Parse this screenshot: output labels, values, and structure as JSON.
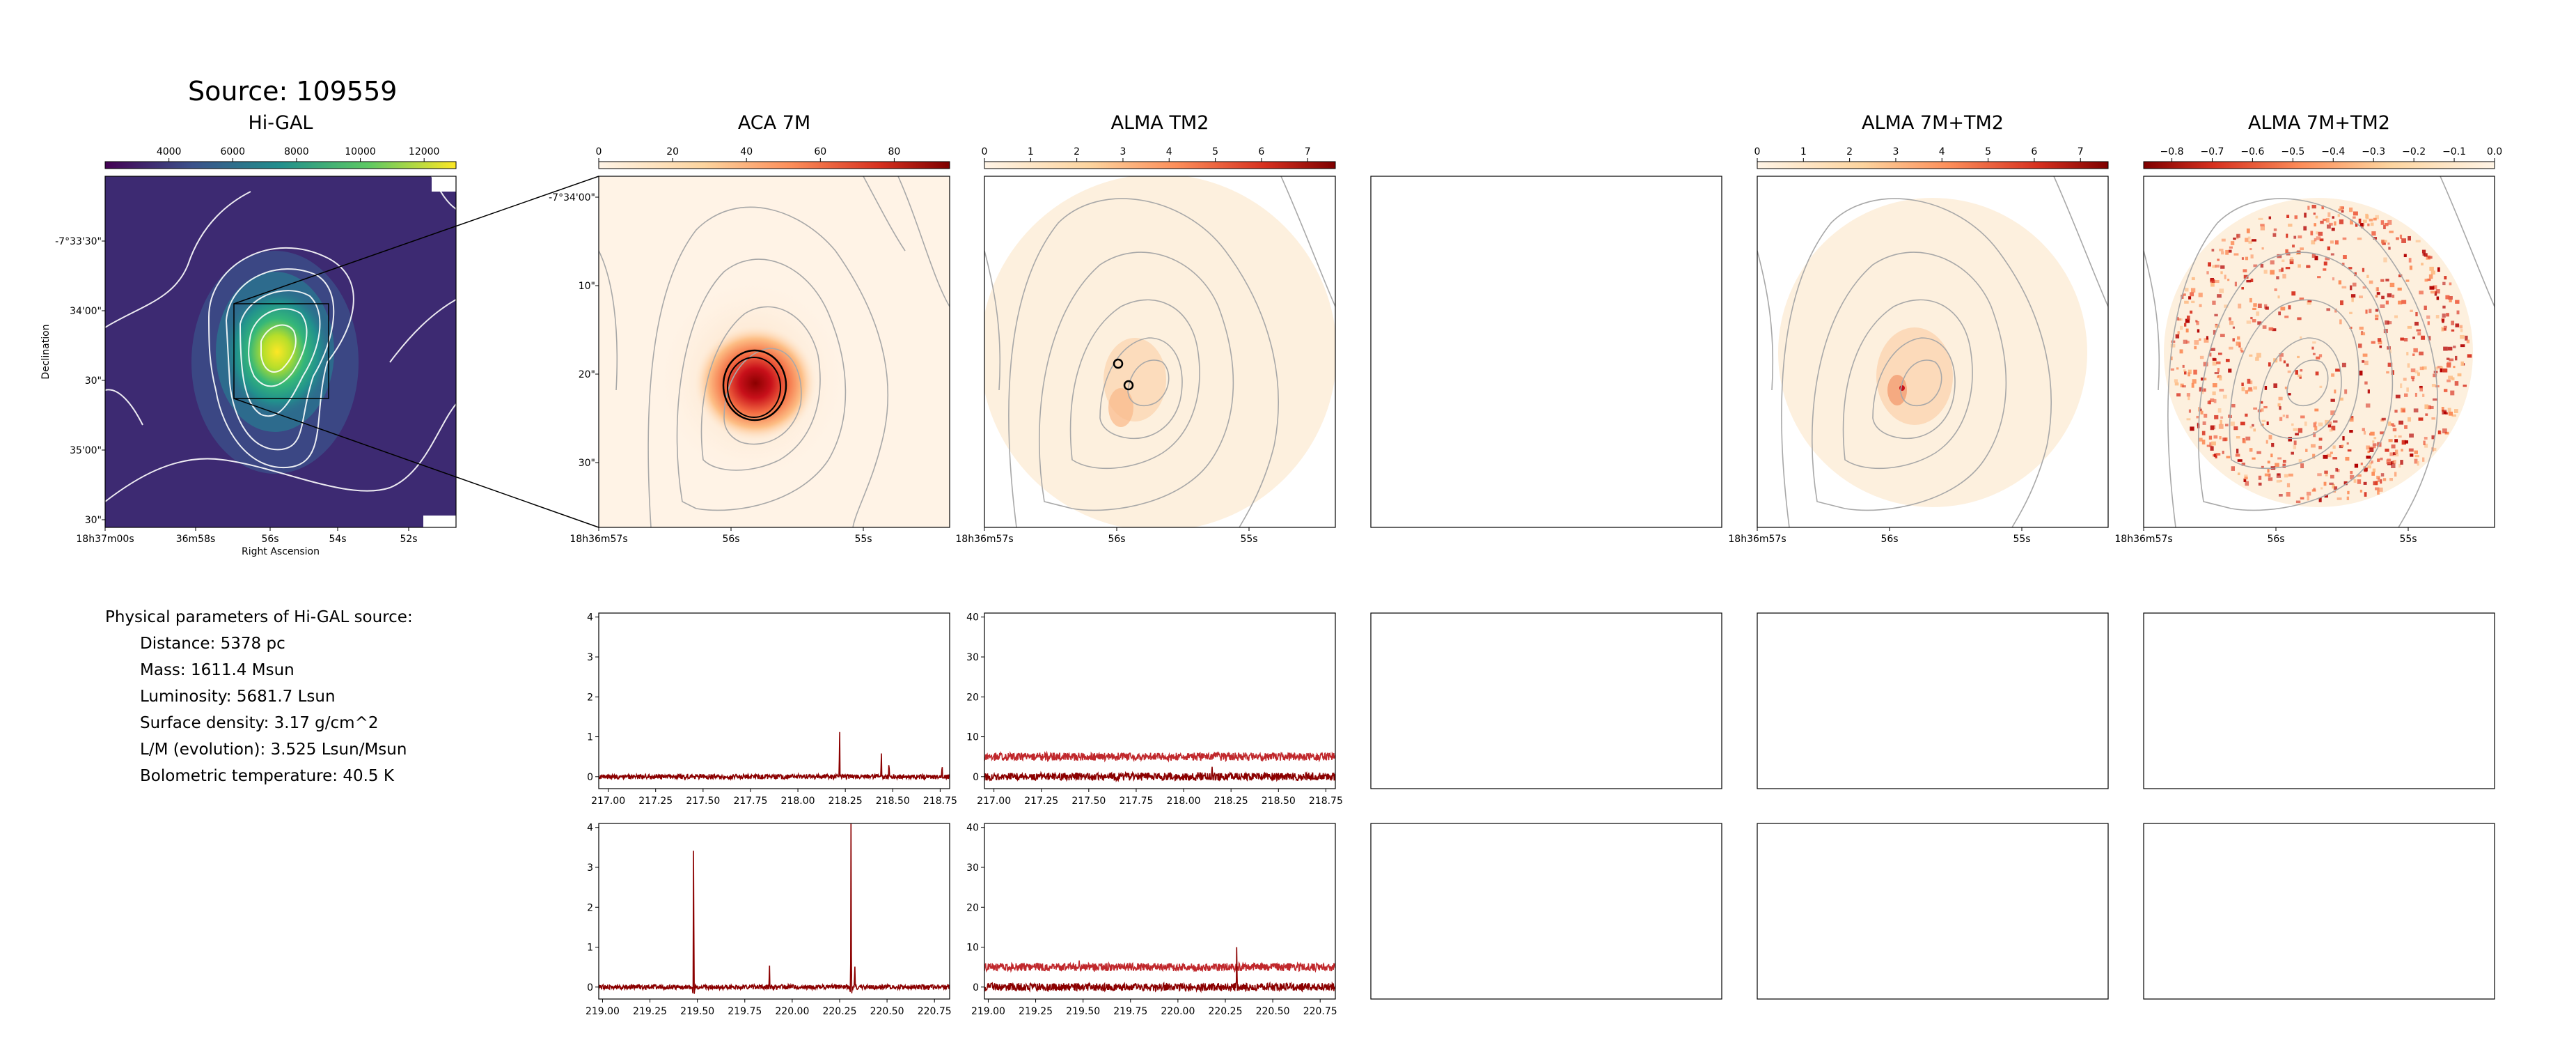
{
  "source_title": "Source: 109559",
  "params": {
    "heading": "Physical parameters of Hi-GAL source:",
    "lines": [
      "Distance: 5378 pc",
      "Mass: 1611.4 Msun",
      "Luminosity: 5681.7 Lsun",
      "Surface density: 3.17 g/cm^2",
      "L/M (evolution): 3.525 Lsun/Msun",
      "Bolometric temperature: 40.5 K"
    ]
  },
  "colors": {
    "viridis": [
      "#440154",
      "#3b528b",
      "#21908d",
      "#5dc963",
      "#fde725"
    ],
    "orange_red": [
      "#fff4e6",
      "#fdd49e",
      "#fc8d59",
      "#d7301f",
      "#7f0000"
    ],
    "spectrum_line": "#8b0000",
    "spectrum_line_2": "#c0282c",
    "contour_white": "#ffffff",
    "contour_gray": "#a8a8a8"
  },
  "chart_data": [
    {
      "id": "higal",
      "type": "heatmap",
      "title": "Hi-GAL",
      "colormap": "viridis",
      "colorbar_ticks": [
        "4000",
        "6000",
        "8000",
        "10000",
        "12000"
      ],
      "colorbar_range": [
        2000,
        13000
      ],
      "xlabel": "Right Ascension",
      "ylabel": "Declination",
      "x_ticks": [
        "18h37m00s",
        "36m58s",
        "56s",
        "54s",
        "52s"
      ],
      "y_ticks": [
        "-7°33'30\"",
        "34'00\"",
        "30\"",
        "35'00\"",
        "30\""
      ],
      "zoom_box": true
    },
    {
      "id": "aca7m",
      "type": "heatmap",
      "title": "ACA 7M",
      "colormap": "OrRd",
      "colorbar_ticks": [
        "0",
        "20",
        "40",
        "60",
        "80"
      ],
      "colorbar_range": [
        0,
        95
      ],
      "x_ticks": [
        "18h36m57s",
        "56s",
        "55s"
      ],
      "y_ticks": [
        "-7°34'00\"",
        "10\"",
        "20\"",
        "30\""
      ]
    },
    {
      "id": "tm2",
      "type": "heatmap",
      "title": "ALMA TM2",
      "colormap": "OrRd",
      "colorbar_ticks": [
        "0",
        "1",
        "2",
        "3",
        "4",
        "5",
        "6",
        "7"
      ],
      "colorbar_range": [
        0,
        7.6
      ],
      "x_ticks": [
        "18h36m57s",
        "56s",
        "55s"
      ]
    },
    {
      "id": "combined",
      "type": "heatmap",
      "title": "ALMA 7M+TM2",
      "colormap": "OrRd",
      "colorbar_ticks": [
        "0",
        "1",
        "2",
        "3",
        "4",
        "5",
        "6",
        "7"
      ],
      "colorbar_range": [
        0,
        7.6
      ],
      "x_ticks": [
        "18h36m57s",
        "56s",
        "55s"
      ]
    },
    {
      "id": "residual",
      "type": "heatmap",
      "title": "ALMA 7M+TM2",
      "colormap": "OrRd_r",
      "colorbar_ticks": [
        "−0.8",
        "−0.7",
        "−0.6",
        "−0.5",
        "−0.4",
        "−0.3",
        "−0.2",
        "−0.1",
        "0.0"
      ],
      "colorbar_range": [
        -0.87,
        0.0
      ],
      "x_ticks": [
        "18h36m57s",
        "56s",
        "55s"
      ]
    },
    {
      "id": "spec_aca_lsb",
      "type": "line",
      "xlim": [
        216.95,
        218.8
      ],
      "ylim": [
        -0.3,
        4.1
      ],
      "x_ticks": [
        217.0,
        217.25,
        217.5,
        217.75,
        218.0,
        218.25,
        218.5,
        218.75
      ],
      "x_tick_labels": [
        "217.00",
        "217.25",
        "217.50",
        "217.75",
        "218.00",
        "218.25",
        "218.50",
        "218.75"
      ],
      "y_ticks": [
        0,
        1,
        2,
        3,
        4
      ],
      "y_tick_labels": [
        "0",
        "1",
        "2",
        "3",
        "4"
      ],
      "series": [
        {
          "baseline": 0,
          "noise": 0.03,
          "lines": [
            [
              218.22,
              1.25
            ],
            [
              218.44,
              0.7
            ],
            [
              218.48,
              0.35
            ],
            [
              218.76,
              0.38
            ]
          ]
        }
      ]
    },
    {
      "id": "spec_tm2_lsb",
      "type": "line",
      "xlim": [
        216.95,
        218.8
      ],
      "ylim": [
        -3,
        41
      ],
      "x_ticks": [
        217.0,
        217.25,
        217.5,
        217.75,
        218.0,
        218.25,
        218.5,
        218.75
      ],
      "x_tick_labels": [
        "217.00",
        "217.25",
        "217.50",
        "217.75",
        "218.00",
        "218.25",
        "218.50",
        "218.75"
      ],
      "y_ticks": [
        0,
        10,
        20,
        30,
        40
      ],
      "y_tick_labels": [
        "0",
        "10",
        "20",
        "30",
        "40"
      ],
      "series": [
        {
          "baseline": 5,
          "noise": 0.5,
          "lines": [],
          "color": "spectrum_line_2"
        },
        {
          "baseline": 0,
          "noise": 0.5,
          "lines": [
            [
              218.15,
              2.0
            ]
          ]
        }
      ]
    },
    {
      "id": "spec_aca_usb",
      "type": "line",
      "xlim": [
        218.98,
        220.83
      ],
      "ylim": [
        -0.3,
        4.1
      ],
      "x_ticks": [
        219.0,
        219.25,
        219.5,
        219.75,
        220.0,
        220.25,
        220.5,
        220.75
      ],
      "x_tick_labels": [
        "219.00",
        "219.25",
        "219.50",
        "219.75",
        "220.00",
        "220.25",
        "220.50",
        "220.75"
      ],
      "y_ticks": [
        0,
        1,
        2,
        3,
        4
      ],
      "y_tick_labels": [
        "0",
        "1",
        "2",
        "3",
        "4"
      ],
      "series": [
        {
          "baseline": 0,
          "noise": 0.03,
          "lines": [
            [
              219.48,
              4.3
            ],
            [
              219.88,
              0.6
            ],
            [
              220.31,
              4.3
            ],
            [
              220.33,
              0.6
            ]
          ],
          "dips": [
            [
              219.48,
              -0.4
            ],
            [
              220.31,
              -0.4
            ]
          ]
        }
      ]
    },
    {
      "id": "spec_tm2_usb",
      "type": "line",
      "xlim": [
        218.98,
        220.83
      ],
      "ylim": [
        -3,
        41
      ],
      "x_ticks": [
        219.0,
        219.25,
        219.5,
        219.75,
        220.0,
        220.25,
        220.5,
        220.75
      ],
      "x_tick_labels": [
        "219.00",
        "219.25",
        "219.50",
        "219.75",
        "220.00",
        "220.25",
        "220.50",
        "220.75"
      ],
      "y_ticks": [
        0,
        10,
        20,
        30,
        40
      ],
      "y_tick_labels": [
        "0",
        "10",
        "20",
        "30",
        "40"
      ],
      "series": [
        {
          "baseline": 5,
          "noise": 0.5,
          "lines": [
            [
              219.48,
              2.5
            ]
          ],
          "color": "spectrum_line_2"
        },
        {
          "baseline": 0,
          "noise": 0.5,
          "lines": [
            [
              220.31,
              10.0
            ]
          ]
        }
      ]
    },
    {
      "id": "empty_map",
      "type": "empty"
    },
    {
      "id": "empty_spec_1",
      "type": "empty"
    },
    {
      "id": "empty_spec_2",
      "type": "empty"
    },
    {
      "id": "empty_spec_3",
      "type": "empty"
    },
    {
      "id": "empty_spec_4",
      "type": "empty"
    },
    {
      "id": "empty_spec_5",
      "type": "empty"
    },
    {
      "id": "empty_spec_6",
      "type": "empty"
    }
  ]
}
